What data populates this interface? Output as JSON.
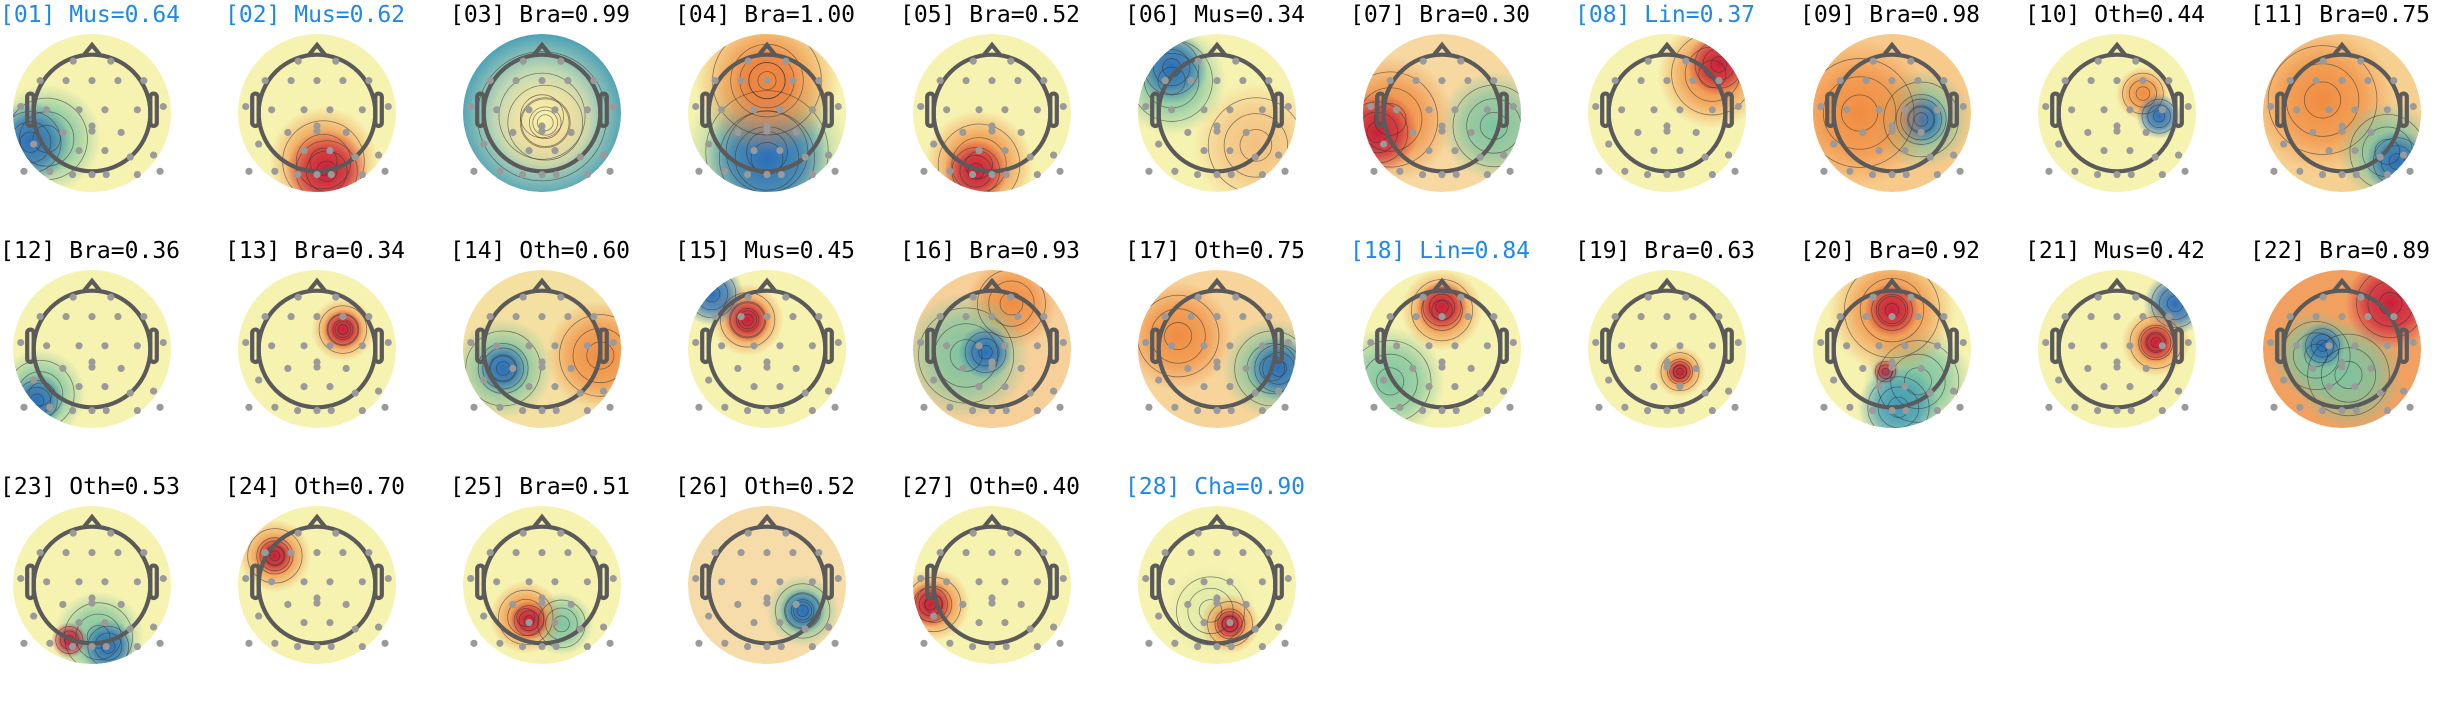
{
  "colors": {
    "highlight": "#1e88f0",
    "normal": "#000000",
    "head": "#5a5a5a",
    "electrode": "#9a9a9a"
  },
  "components": [
    {
      "id": "01",
      "label": "Mus",
      "score": "0.64",
      "highlighted": true
    },
    {
      "id": "02",
      "label": "Mus",
      "score": "0.62",
      "highlighted": true
    },
    {
      "id": "03",
      "label": "Bra",
      "score": "0.99",
      "highlighted": false
    },
    {
      "id": "04",
      "label": "Bra",
      "score": "1.00",
      "highlighted": false
    },
    {
      "id": "05",
      "label": "Bra",
      "score": "0.52",
      "highlighted": false
    },
    {
      "id": "06",
      "label": "Mus",
      "score": "0.34",
      "highlighted": false
    },
    {
      "id": "07",
      "label": "Bra",
      "score": "0.30",
      "highlighted": false
    },
    {
      "id": "08",
      "label": "Lin",
      "score": "0.37",
      "highlighted": true
    },
    {
      "id": "09",
      "label": "Bra",
      "score": "0.98",
      "highlighted": false
    },
    {
      "id": "10",
      "label": "Oth",
      "score": "0.44",
      "highlighted": false
    },
    {
      "id": "11",
      "label": "Bra",
      "score": "0.75",
      "highlighted": false
    },
    {
      "id": "12",
      "label": "Bra",
      "score": "0.36",
      "highlighted": false
    },
    {
      "id": "13",
      "label": "Bra",
      "score": "0.34",
      "highlighted": false
    },
    {
      "id": "14",
      "label": "Oth",
      "score": "0.60",
      "highlighted": false
    },
    {
      "id": "15",
      "label": "Mus",
      "score": "0.45",
      "highlighted": false
    },
    {
      "id": "16",
      "label": "Bra",
      "score": "0.93",
      "highlighted": false
    },
    {
      "id": "17",
      "label": "Oth",
      "score": "0.75",
      "highlighted": false
    },
    {
      "id": "18",
      "label": "Lin",
      "score": "0.84",
      "highlighted": true
    },
    {
      "id": "19",
      "label": "Bra",
      "score": "0.63",
      "highlighted": false
    },
    {
      "id": "20",
      "label": "Bra",
      "score": "0.92",
      "highlighted": false
    },
    {
      "id": "21",
      "label": "Mus",
      "score": "0.42",
      "highlighted": false
    },
    {
      "id": "22",
      "label": "Bra",
      "score": "0.89",
      "highlighted": false
    },
    {
      "id": "23",
      "label": "Oth",
      "score": "0.53",
      "highlighted": false
    },
    {
      "id": "24",
      "label": "Oth",
      "score": "0.70",
      "highlighted": false
    },
    {
      "id": "25",
      "label": "Bra",
      "score": "0.51",
      "highlighted": false
    },
    {
      "id": "26",
      "label": "Oth",
      "score": "0.52",
      "highlighted": false
    },
    {
      "id": "27",
      "label": "Oth",
      "score": "0.40",
      "highlighted": false
    },
    {
      "id": "28",
      "label": "Cha",
      "score": "0.90",
      "highlighted": true
    }
  ]
}
